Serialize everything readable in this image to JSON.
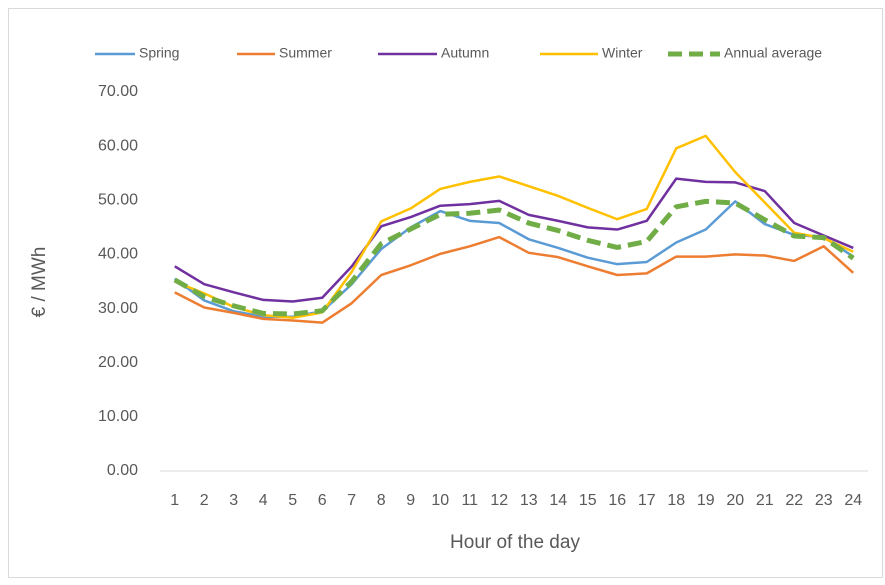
{
  "chart_data": {
    "type": "line",
    "x_label": "Hour of the day",
    "y_label": "€ / MWh",
    "categories": [
      "1",
      "2",
      "3",
      "4",
      "5",
      "6",
      "7",
      "8",
      "9",
      "10",
      "11",
      "12",
      "13",
      "14",
      "15",
      "16",
      "17",
      "18",
      "19",
      "20",
      "21",
      "22",
      "23",
      "24"
    ],
    "ylim": [
      0,
      70
    ],
    "yticks": [
      {
        "value": 0,
        "label": "0.00"
      },
      {
        "value": 10,
        "label": "10.00"
      },
      {
        "value": 20,
        "label": "20.00"
      },
      {
        "value": 30,
        "label": "30.00"
      },
      {
        "value": 40,
        "label": "40.00"
      },
      {
        "value": 50,
        "label": "50.00"
      },
      {
        "value": 60,
        "label": "60.00"
      },
      {
        "value": 70,
        "label": "70.00"
      }
    ],
    "grid": false,
    "legend": "top",
    "series": [
      {
        "name": "Spring",
        "color": "#5b9bd5",
        "values": [
          35.5,
          31.5,
          29.5,
          28.5,
          28.5,
          29.5,
          34.5,
          41,
          45,
          48,
          46.2,
          45.8,
          42.8,
          41.2,
          39.4,
          38.2,
          38.6,
          42.2,
          44.6,
          49.8,
          45.6,
          43.6,
          43.2,
          39.6
        ]
      },
      {
        "name": "Summer",
        "color": "#ed7d31",
        "values": [
          33,
          30.2,
          29.2,
          28.1,
          27.8,
          27.4,
          31,
          36.2,
          38,
          40.1,
          41.5,
          43.2,
          40.3,
          39.5,
          37.8,
          36.2,
          36.5,
          39.6,
          39.6,
          40,
          39.8,
          38.8,
          41.5,
          36.6
        ]
      },
      {
        "name": "Autumn",
        "color": "#7030a0",
        "values": [
          37.8,
          34.5,
          33,
          31.6,
          31.3,
          32,
          37.8,
          45.2,
          46.9,
          49,
          49.3,
          49.9,
          47.3,
          46.2,
          45,
          44.6,
          46.2,
          54,
          53.4,
          53.3,
          51.7,
          45.8,
          43.5,
          41.2
        ]
      },
      {
        "name": "Winter",
        "color": "#ffc000",
        "values": [
          35,
          32.8,
          30.3,
          28.8,
          28.3,
          29.3,
          36.8,
          46.1,
          48.5,
          52.1,
          53.4,
          54.4,
          52.6,
          50.8,
          48.6,
          46.5,
          48.4,
          59.6,
          61.9,
          55.2,
          49.6,
          44,
          43,
          40.5
        ]
      },
      {
        "name": "Annual average",
        "color": "#70ad47",
        "style": "dashed",
        "values": [
          35.3,
          32.2,
          30.5,
          29.1,
          29,
          29.6,
          35,
          42,
          44.7,
          47.4,
          47.6,
          48.2,
          45.8,
          44.4,
          42.6,
          41.3,
          42.4,
          48.8,
          49.8,
          49.5,
          46.4,
          43.4,
          43.1,
          39.3
        ]
      }
    ]
  }
}
